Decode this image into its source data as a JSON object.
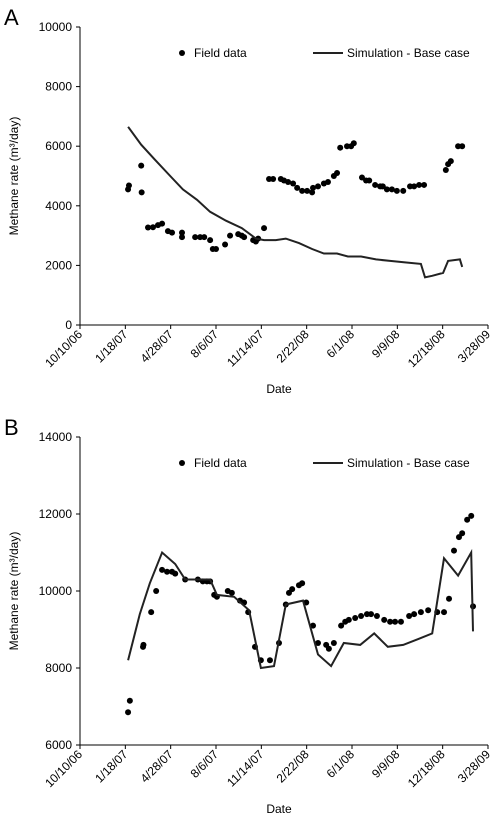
{
  "chart_data": [
    {
      "type": "line",
      "panel_label": "A",
      "x_label": "Date",
      "y_label": "Methane rate (m³/day)",
      "xlim": [
        "10/10/06",
        "3/28/09"
      ],
      "xticks": [
        "10/10/06",
        "1/18/07",
        "4/28/07",
        "8/6/07",
        "11/14/07",
        "2/22/08",
        "6/1/08",
        "9/9/08",
        "12/18/08",
        "3/28/09"
      ],
      "ylim": [
        0,
        10000
      ],
      "yticks": [
        0,
        2000,
        4000,
        6000,
        8000,
        10000
      ],
      "series": [
        {
          "name": "Field data",
          "mode": "markers",
          "color": "#000000",
          "x": [
            "1/24/07",
            "1/26/07",
            "2/22/07",
            "2/23/07",
            "3/9/07",
            "3/20/07",
            "3/31/07",
            "4/9/07",
            "4/22/07",
            "5/1/07",
            "5/23/07",
            "5/23/07",
            "6/21/07",
            "7/2/07",
            "7/11/07",
            "7/24/07",
            "7/30/07",
            "8/6/07",
            "8/26/07",
            "9/6/07",
            "9/24/07",
            "10/2/07",
            "10/7/07",
            "10/27/07",
            "11/2/07",
            "11/7/07",
            "11/20/07",
            "12/1/07",
            "12/10/07",
            "12/27/07",
            "1/3/08",
            "1/12/08",
            "1/23/08",
            "2/1/08",
            "2/12/08",
            "2/23/08",
            "3/5/08",
            "3/7/08",
            "3/18/08",
            "3/31/08",
            "4/9/08",
            "4/22/08",
            "4/29/08",
            "5/6/08",
            "5/21/08",
            "5/30/08",
            "6/5/08",
            "6/23/08",
            "7/2/08",
            "7/9/08",
            "7/22/08",
            "8/2/08",
            "8/8/08",
            "8/17/08",
            "8/28/08",
            "9/8/08",
            "9/22/08",
            "10/7/08",
            "10/16/08",
            "10/27/08",
            "11/7/08",
            "12/25/08",
            "12/30/08",
            "1/5/09",
            "1/21/09",
            "1/30/09"
          ],
          "values": [
            4550,
            4680,
            5350,
            4450,
            3270,
            3280,
            3350,
            3400,
            3150,
            3100,
            3100,
            2950,
            2950,
            2950,
            2950,
            2850,
            2550,
            2550,
            2700,
            3000,
            3050,
            3000,
            2950,
            2850,
            2800,
            2900,
            3250,
            4900,
            4900,
            4900,
            4850,
            4800,
            4750,
            4600,
            4500,
            4500,
            4450,
            4600,
            4650,
            4750,
            4800,
            5000,
            5100,
            5950,
            6000,
            6000,
            6100,
            4950,
            4850,
            4850,
            4700,
            4650,
            4650,
            4550,
            4550,
            4500,
            4500,
            4650,
            4650,
            4700,
            4700,
            5200,
            5400,
            5500,
            6000,
            6000
          ]
        },
        {
          "name": "Simulation - Base case",
          "mode": "line",
          "color": "#222222",
          "x": [
            "1/24/07",
            "2/22/07",
            "3/24/07",
            "4/27/07",
            "5/25/07",
            "6/25/07",
            "7/24/07",
            "8/28/07",
            "10/2/07",
            "11/2/07",
            "11/20/07",
            "12/16/07",
            "1/7/08",
            "2/5/08",
            "3/5/08",
            "3/31/08",
            "4/29/08",
            "5/23/08",
            "6/21/08",
            "7/24/08",
            "8/24/08",
            "9/26/08",
            "10/31/08",
            "11/9/08",
            "11/25/08",
            "12/19/08",
            "12/30/08",
            "1/25/09",
            "1/30/09"
          ],
          "values": [
            6650,
            6050,
            5550,
            5000,
            4550,
            4200,
            3800,
            3500,
            3250,
            2900,
            2850,
            2850,
            2900,
            2750,
            2550,
            2400,
            2400,
            2300,
            2300,
            2200,
            2150,
            2100,
            2050,
            1600,
            1650,
            1750,
            2150,
            2200,
            1950
          ]
        }
      ]
    },
    {
      "type": "line",
      "panel_label": "B",
      "x_label": "Date",
      "y_label": "Methane rate (m³/day)",
      "xlim": [
        "10/10/06",
        "3/28/09"
      ],
      "xticks": [
        "10/10/06",
        "1/18/07",
        "4/28/07",
        "8/6/07",
        "11/14/07",
        "2/22/08",
        "6/1/08",
        "9/9/08",
        "12/18/08",
        "3/28/09"
      ],
      "ylim": [
        6000,
        14000
      ],
      "yticks": [
        6000,
        8000,
        10000,
        12000,
        14000
      ],
      "series": [
        {
          "name": "Field data",
          "mode": "markers",
          "color": "#000000",
          "x": [
            "1/24/07",
            "1/28/07",
            "2/26/07",
            "2/27/07",
            "3/16/07",
            "3/27/07",
            "4/9/07",
            "4/20/07",
            "5/1/07",
            "5/8/07",
            "5/30/07",
            "6/27/07",
            "7/8/07",
            "7/17/07",
            "7/24/07",
            "8/2/07",
            "8/8/07",
            "9/1/07",
            "9/10/07",
            "9/28/07",
            "10/7/07",
            "10/16/07",
            "10/31/07",
            "11/13/07",
            "12/3/07",
            "12/23/07",
            "1/7/08",
            "1/14/08",
            "1/21/08",
            "2/5/08",
            "2/12/08",
            "2/21/08",
            "3/7/08",
            "3/18/08",
            "4/5/08",
            "4/11/08",
            "4/22/08",
            "5/8/08",
            "5/17/08",
            "5/25/08",
            "6/8/08",
            "6/21/08",
            "7/4/08",
            "7/13/08",
            "7/26/08",
            "8/11/08",
            "8/24/08",
            "9/4/08",
            "9/17/08",
            "10/5/08",
            "10/16/08",
            "10/31/08",
            "11/16/08",
            "12/6/08",
            "12/21/08",
            "1/1/09",
            "1/12/09",
            "1/23/09",
            "1/30/09",
            "2/10/09",
            "2/19/09",
            "2/23/09"
          ],
          "values": [
            6850,
            7150,
            8550,
            8600,
            9450,
            10000,
            10550,
            10500,
            10500,
            10450,
            10300,
            10300,
            10250,
            10250,
            10250,
            9900,
            9850,
            10000,
            9950,
            9750,
            9700,
            9450,
            8550,
            8200,
            8200,
            8650,
            9650,
            9950,
            10050,
            10150,
            10200,
            9700,
            9100,
            8650,
            8600,
            8500,
            8650,
            9100,
            9200,
            9250,
            9300,
            9350,
            9400,
            9400,
            9350,
            9250,
            9200,
            9200,
            9200,
            9350,
            9400,
            9450,
            9500,
            9450,
            9450,
            9800,
            11050,
            11400,
            11500,
            11850,
            11950,
            9600
          ]
        },
        {
          "name": "Simulation - Base case",
          "mode": "line",
          "color": "#222222",
          "x": [
            "1/24/07",
            "2/19/07",
            "3/13/07",
            "4/9/07",
            "5/8/07",
            "5/30/07",
            "6/30/07",
            "7/24/07",
            "8/8/07",
            "9/15/07",
            "10/18/07",
            "11/13/07",
            "12/12/07",
            "1/7/08",
            "2/14/08",
            "3/18/08",
            "4/16/08",
            "5/14/08",
            "6/19/08",
            "7/20/08",
            "8/19/08",
            "9/22/08",
            "10/25/08",
            "11/25/08",
            "12/21/08",
            "1/21/09",
            "2/19/09",
            "2/23/09"
          ],
          "values": [
            8200,
            9400,
            10200,
            11000,
            10700,
            10300,
            10300,
            10300,
            9900,
            9850,
            9500,
            8000,
            8050,
            9650,
            9750,
            8350,
            8050,
            8650,
            8600,
            8900,
            8550,
            8600,
            8750,
            8900,
            10850,
            10400,
            11000,
            8950
          ]
        }
      ]
    }
  ]
}
